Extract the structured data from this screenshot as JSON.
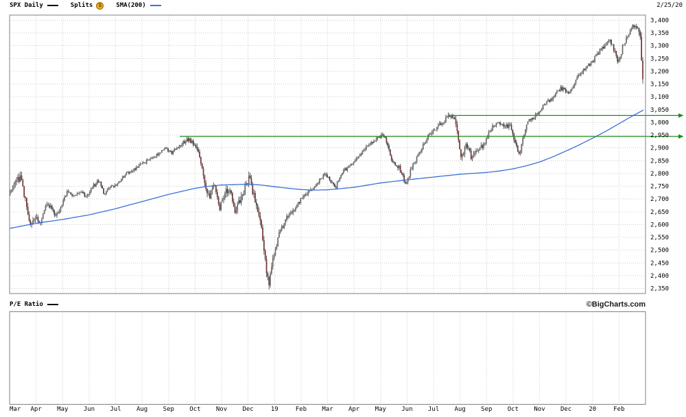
{
  "legend": {
    "symbol_label": "SPX Daily",
    "splits_label": "Splits",
    "splits_badge": "S",
    "sma_label": "SMA(200)",
    "date": "2/25/20"
  },
  "lower_panel": {
    "label": "P/E Ratio",
    "watermark": "©BigCharts.com"
  },
  "colors": {
    "grid": "#cccccc",
    "border": "#808080",
    "candle_wick": "#4a4a4a",
    "candle_up": "#686868",
    "candle_down": "#343434",
    "candle_crash": "#713030",
    "sma": "#3a6fd8",
    "trendline": "#1e8a1e",
    "price_swatch": "#000000",
    "splits_badge_bg": "#f3a81c"
  },
  "chart_data": {
    "type": "candlestick",
    "symbol": "SPX",
    "interval": "Daily",
    "as_of_date": "2/25/20",
    "legend_position": "top",
    "grid": true,
    "x_axis_labels": [
      "Mar",
      "Apr",
      "May",
      "Jun",
      "Jul",
      "Aug",
      "Sep",
      "Oct",
      "Nov",
      "Dec",
      "19",
      "Feb",
      "Mar",
      "Apr",
      "May",
      "Jun",
      "Jul",
      "Aug",
      "Sep",
      "Oct",
      "Nov",
      "Dec",
      "20",
      "Feb"
    ],
    "months_span": 24,
    "price_end_month": 23.92,
    "bars_per_month": 21,
    "ylim": [
      2330,
      3420
    ],
    "y_axis_ticks": [
      3400,
      3350,
      3300,
      3250,
      3200,
      3150,
      3100,
      3050,
      3000,
      2950,
      2900,
      2850,
      2800,
      2750,
      2700,
      2650,
      2600,
      2550,
      2500,
      2450,
      2400,
      2350
    ],
    "price_anchors": [
      [
        0.0,
        2715
      ],
      [
        0.2,
        2760
      ],
      [
        0.4,
        2785
      ],
      [
        0.6,
        2700
      ],
      [
        0.8,
        2595
      ],
      [
        1.0,
        2640
      ],
      [
        1.15,
        2605
      ],
      [
        1.35,
        2680
      ],
      [
        1.55,
        2665
      ],
      [
        1.75,
        2635
      ],
      [
        1.95,
        2670
      ],
      [
        2.2,
        2730
      ],
      [
        2.45,
        2715
      ],
      [
        2.7,
        2725
      ],
      [
        2.9,
        2705
      ],
      [
        3.15,
        2750
      ],
      [
        3.4,
        2775
      ],
      [
        3.55,
        2720
      ],
      [
        3.8,
        2745
      ],
      [
        4.1,
        2760
      ],
      [
        4.4,
        2800
      ],
      [
        4.7,
        2815
      ],
      [
        4.95,
        2835
      ],
      [
        5.3,
        2855
      ],
      [
        5.6,
        2875
      ],
      [
        5.9,
        2900
      ],
      [
        6.1,
        2880
      ],
      [
        6.4,
        2905
      ],
      [
        6.7,
        2935
      ],
      [
        6.95,
        2920
      ],
      [
        7.15,
        2875
      ],
      [
        7.35,
        2760
      ],
      [
        7.55,
        2710
      ],
      [
        7.7,
        2770
      ],
      [
        7.9,
        2660
      ],
      [
        8.1,
        2720
      ],
      [
        8.3,
        2740
      ],
      [
        8.5,
        2645
      ],
      [
        8.7,
        2700
      ],
      [
        8.9,
        2745
      ],
      [
        9.05,
        2785
      ],
      [
        9.25,
        2695
      ],
      [
        9.45,
        2630
      ],
      [
        9.6,
        2500
      ],
      [
        9.78,
        2355
      ],
      [
        9.95,
        2480
      ],
      [
        10.2,
        2570
      ],
      [
        10.5,
        2635
      ],
      [
        10.8,
        2665
      ],
      [
        11.0,
        2700
      ],
      [
        11.3,
        2730
      ],
      [
        11.6,
        2760
      ],
      [
        11.9,
        2800
      ],
      [
        12.1,
        2775
      ],
      [
        12.3,
        2745
      ],
      [
        12.6,
        2810
      ],
      [
        12.9,
        2835
      ],
      [
        13.2,
        2870
      ],
      [
        13.5,
        2905
      ],
      [
        13.8,
        2930
      ],
      [
        13.97,
        2945
      ],
      [
        14.15,
        2950
      ],
      [
        14.4,
        2860
      ],
      [
        14.7,
        2825
      ],
      [
        14.95,
        2755
      ],
      [
        15.2,
        2830
      ],
      [
        15.5,
        2890
      ],
      [
        15.8,
        2945
      ],
      [
        16.0,
        2970
      ],
      [
        16.3,
        2995
      ],
      [
        16.55,
        3020
      ],
      [
        16.8,
        3015
      ],
      [
        17.05,
        2855
      ],
      [
        17.25,
        2920
      ],
      [
        17.45,
        2855
      ],
      [
        17.65,
        2890
      ],
      [
        17.85,
        2905
      ],
      [
        18.1,
        2960
      ],
      [
        18.4,
        3005
      ],
      [
        18.65,
        2990
      ],
      [
        18.9,
        2985
      ],
      [
        19.05,
        2920
      ],
      [
        19.25,
        2875
      ],
      [
        19.5,
        2995
      ],
      [
        19.75,
        3020
      ],
      [
        19.95,
        3035
      ],
      [
        20.2,
        3075
      ],
      [
        20.5,
        3095
      ],
      [
        20.8,
        3135
      ],
      [
        21.1,
        3115
      ],
      [
        21.4,
        3170
      ],
      [
        21.7,
        3210
      ],
      [
        21.95,
        3230
      ],
      [
        22.2,
        3270
      ],
      [
        22.45,
        3300
      ],
      [
        22.65,
        3325
      ],
      [
        22.85,
        3275
      ],
      [
        22.97,
        3230
      ],
      [
        23.15,
        3300
      ],
      [
        23.35,
        3345
      ],
      [
        23.55,
        3380
      ],
      [
        23.65,
        3370
      ],
      [
        23.72,
        3373
      ],
      [
        23.8,
        3338
      ],
      [
        23.86,
        3226
      ],
      [
        23.92,
        3128
      ]
    ],
    "volatility_anchors": [
      [
        0,
        1.6
      ],
      [
        0.8,
        1.8
      ],
      [
        1.5,
        1.3
      ],
      [
        2.5,
        1.0
      ],
      [
        4,
        0.8
      ],
      [
        5.5,
        0.7
      ],
      [
        6.5,
        0.8
      ],
      [
        7.2,
        1.6
      ],
      [
        7.6,
        2.0
      ],
      [
        8.5,
        1.8
      ],
      [
        9.5,
        2.2
      ],
      [
        9.8,
        2.4
      ],
      [
        10.2,
        1.4
      ],
      [
        11,
        1.0
      ],
      [
        12,
        0.9
      ],
      [
        13,
        0.8
      ],
      [
        14.2,
        1.0
      ],
      [
        14.6,
        1.4
      ],
      [
        15,
        1.2
      ],
      [
        16,
        0.9
      ],
      [
        17.1,
        1.7
      ],
      [
        17.6,
        1.4
      ],
      [
        18.5,
        0.9
      ],
      [
        19.2,
        1.3
      ],
      [
        20,
        0.8
      ],
      [
        21,
        0.8
      ],
      [
        22,
        0.8
      ],
      [
        23,
        1.0
      ],
      [
        23.5,
        0.8
      ],
      [
        23.8,
        1.5
      ],
      [
        23.92,
        2.5
      ]
    ],
    "sma200_anchors": [
      [
        0,
        2585
      ],
      [
        1,
        2605
      ],
      [
        2,
        2620
      ],
      [
        3,
        2638
      ],
      [
        4,
        2662
      ],
      [
        5,
        2690
      ],
      [
        6,
        2718
      ],
      [
        7,
        2742
      ],
      [
        7.5,
        2750
      ],
      [
        8,
        2755
      ],
      [
        9,
        2758
      ],
      [
        9.5,
        2755
      ],
      [
        10,
        2748
      ],
      [
        11,
        2737
      ],
      [
        11.5,
        2735
      ],
      [
        12,
        2736
      ],
      [
        13,
        2746
      ],
      [
        14,
        2763
      ],
      [
        15,
        2775
      ],
      [
        16,
        2786
      ],
      [
        17,
        2797
      ],
      [
        18,
        2804
      ],
      [
        18.5,
        2810
      ],
      [
        19,
        2818
      ],
      [
        19.5,
        2830
      ],
      [
        20,
        2845
      ],
      [
        20.5,
        2865
      ],
      [
        21,
        2888
      ],
      [
        21.5,
        2912
      ],
      [
        22,
        2938
      ],
      [
        22.5,
        2965
      ],
      [
        23,
        2995
      ],
      [
        23.5,
        3025
      ],
      [
        23.92,
        3048
      ]
    ],
    "trendlines": [
      {
        "value": 3027,
        "start_month": 16.55
      },
      {
        "value": 2945,
        "start_month": 6.42
      }
    ],
    "pe_panel": {
      "label": "P/E Ratio",
      "values": []
    }
  }
}
